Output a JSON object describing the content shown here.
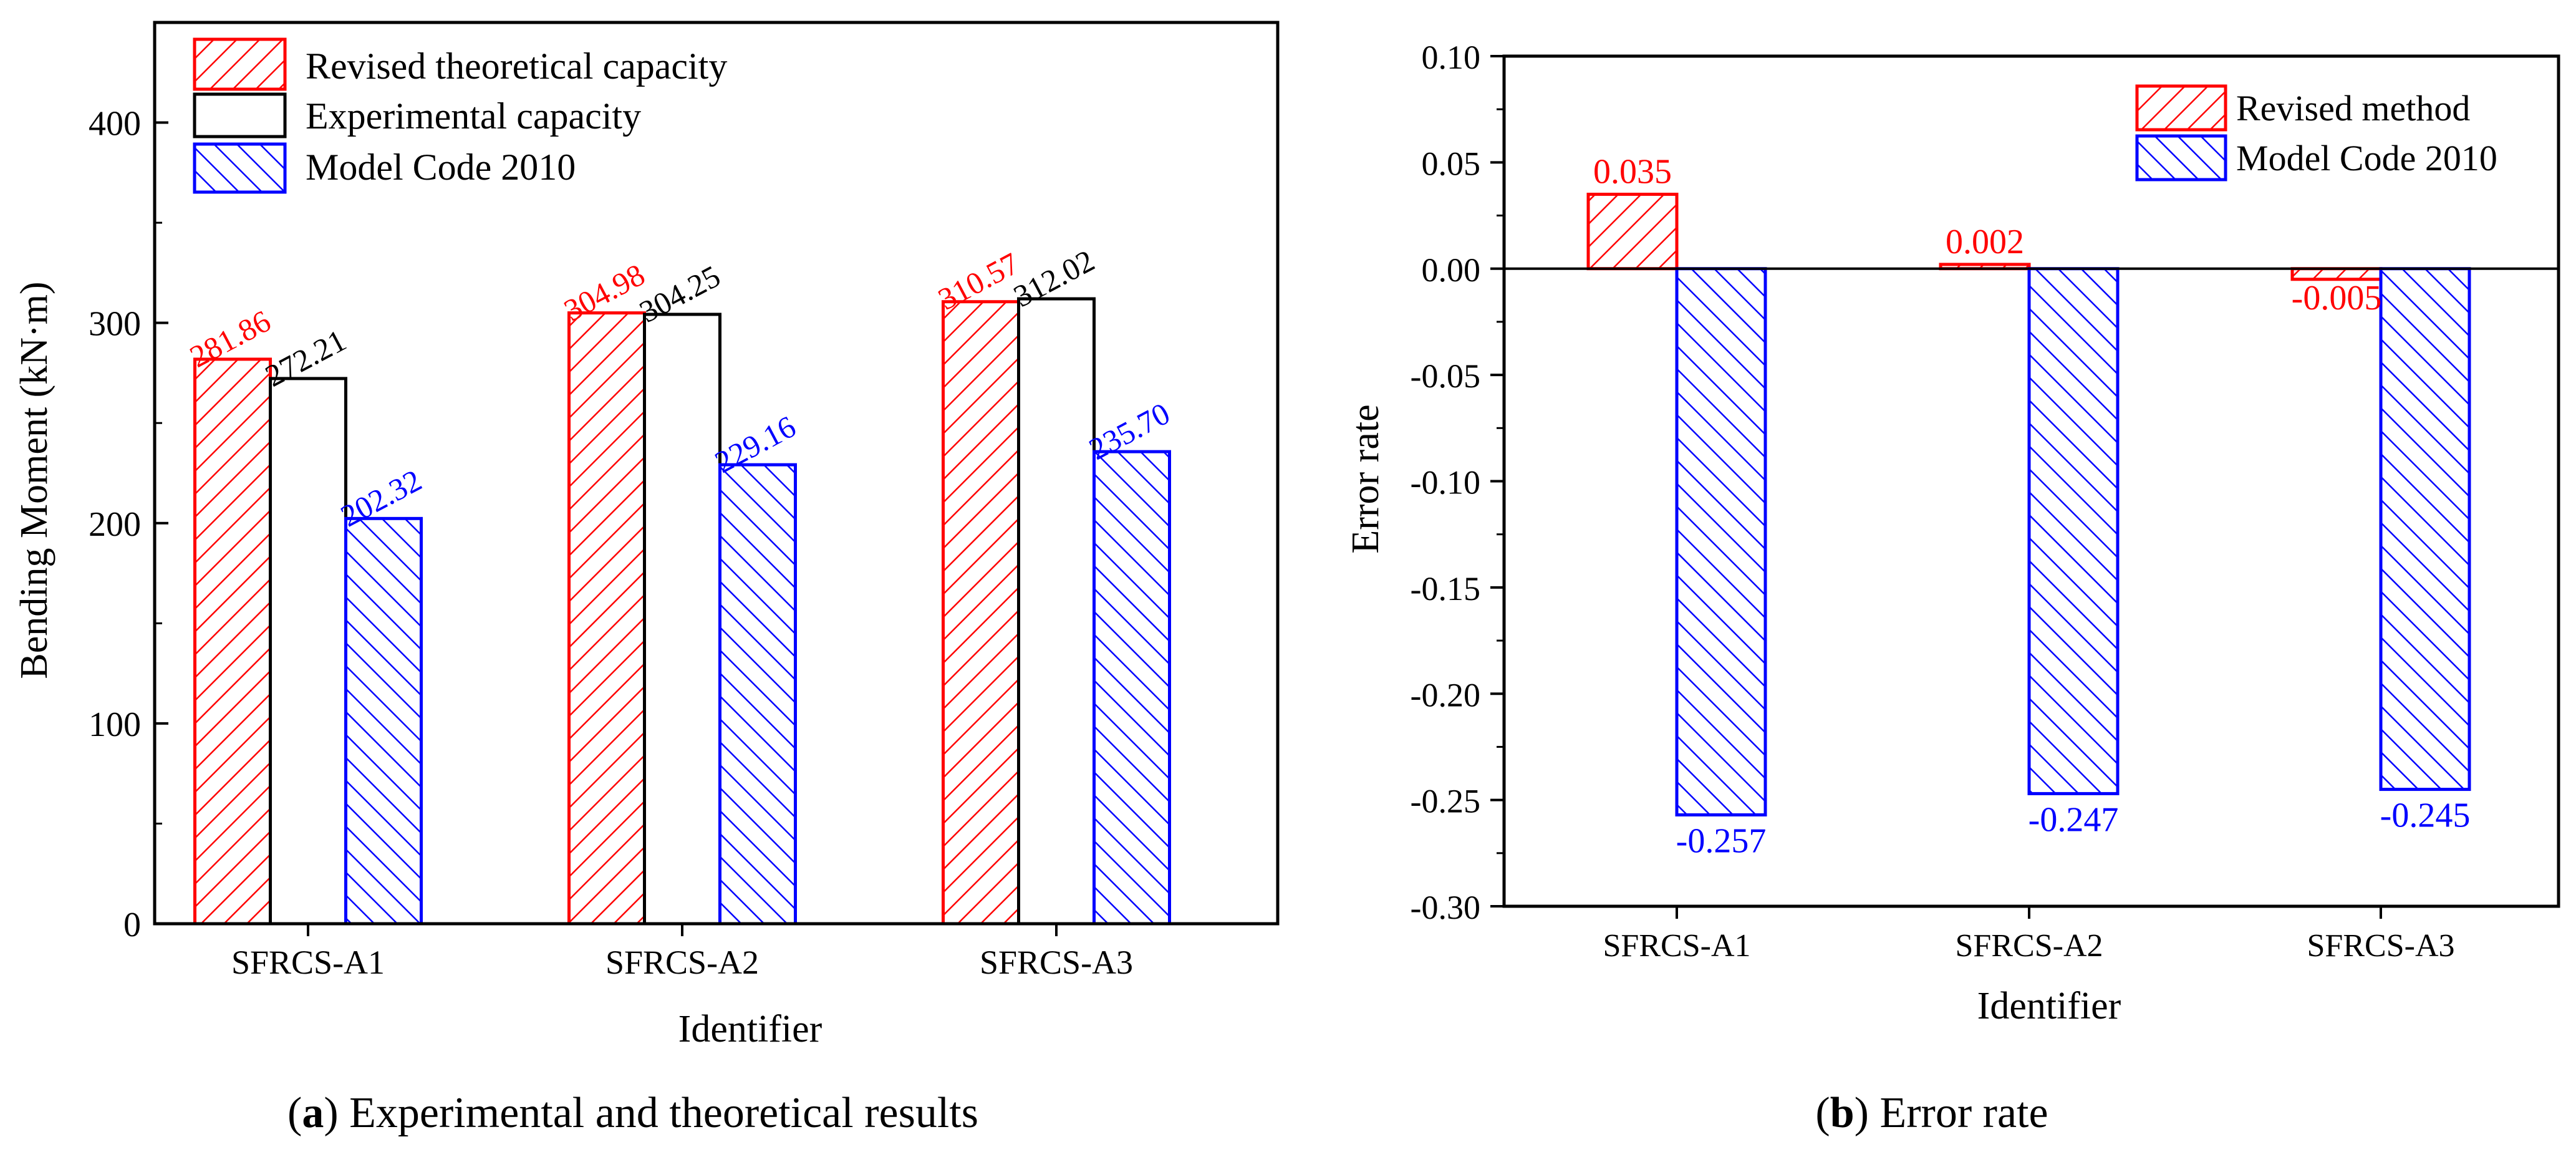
{
  "chart_data": [
    {
      "type": "bar",
      "title": "",
      "xlabel": "Identifier",
      "ylabel": "Bending Moment (kN·m)",
      "ylim": [
        0,
        450
      ],
      "yticks": [
        0,
        100,
        200,
        300,
        400
      ],
      "ytick_labels": [
        "0",
        "100",
        "200",
        "300",
        "400"
      ],
      "categories": [
        "SFRCS-A1",
        "SFRCS-A2",
        "SFRCS-A3"
      ],
      "legend_position": "top-left",
      "series": [
        {
          "name": "Revised theoretical capacity",
          "values": [
            281.86,
            304.98,
            310.57
          ],
          "labels": [
            "281.86",
            "304.98",
            "310.57"
          ],
          "color": "#ff0000",
          "pattern": "hatch-forward"
        },
        {
          "name": "Experimental capacity",
          "values": [
            272.21,
            304.25,
            312.02
          ],
          "labels": [
            "272.21",
            "304.25",
            "312.02"
          ],
          "color": "#000000",
          "pattern": "none"
        },
        {
          "name": "Model Code 2010",
          "values": [
            202.32,
            229.16,
            235.7
          ],
          "labels": [
            "202.32",
            "229.16",
            "235.70"
          ],
          "color": "#0000ff",
          "pattern": "hatch-back"
        }
      ],
      "caption": {
        "letter": "a",
        "text": " Experimental and theoretical results"
      }
    },
    {
      "type": "bar",
      "title": "",
      "xlabel": "Identifier",
      "ylabel": "Error rate",
      "ylim": [
        -0.3,
        0.1
      ],
      "yticks": [
        -0.3,
        -0.25,
        -0.2,
        -0.15,
        -0.1,
        -0.05,
        0,
        0.05,
        0.1
      ],
      "ytick_labels": [
        "-0.30",
        "-0.25",
        "-0.20",
        "-0.15",
        "-0.10",
        "-0.05",
        "0.00",
        "0.05",
        "0.10"
      ],
      "categories": [
        "SFRCS-A1",
        "SFRCS-A2",
        "SFRCS-A3"
      ],
      "legend_position": "top-right",
      "series": [
        {
          "name": "Revised method",
          "values": [
            0.035,
            0.002,
            -0.005
          ],
          "labels": [
            "0.035",
            "0.002",
            "-0.005"
          ],
          "color": "#ff0000",
          "pattern": "hatch-forward"
        },
        {
          "name": "Model Code 2010",
          "values": [
            -0.257,
            -0.247,
            -0.245
          ],
          "labels": [
            "-0.257",
            "-0.247",
            "-0.245"
          ],
          "color": "#0000ff",
          "pattern": "hatch-back"
        }
      ],
      "caption": {
        "letter": "b",
        "text": " Error rate"
      }
    }
  ]
}
